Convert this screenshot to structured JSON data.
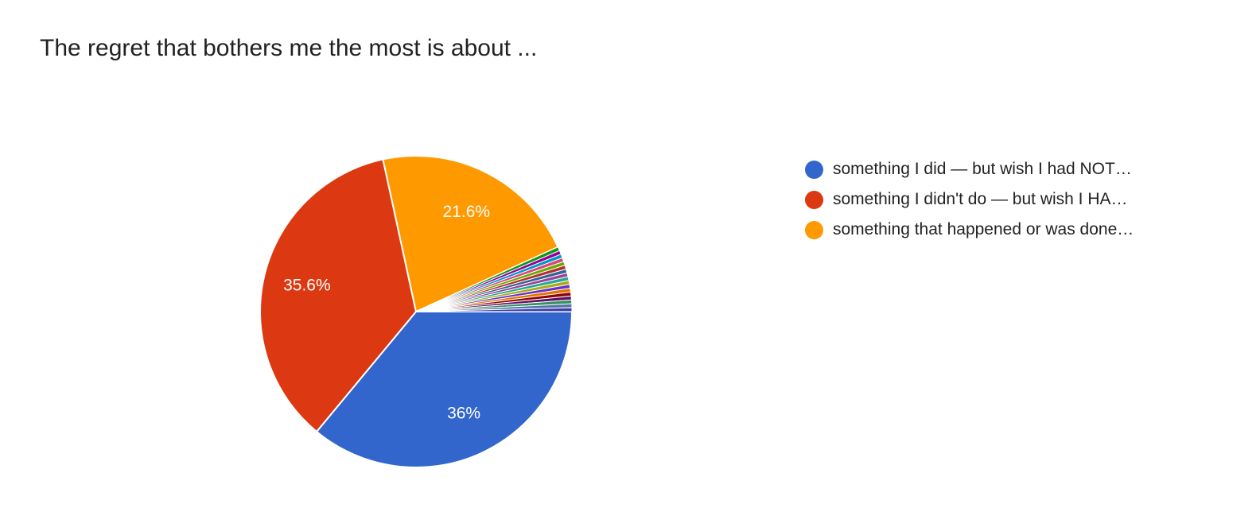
{
  "chart_data": {
    "type": "pie",
    "title": "The regret that bothers me the most is about ...",
    "start_angle_deg": 90,
    "slices": [
      {
        "name": "something I did — but wish I had NOT…",
        "value": 36,
        "label": "36%",
        "color": "#3366cc",
        "in_legend": true
      },
      {
        "name": "something I didn't do — but wish I HA…",
        "value": 35.6,
        "label": "35.6%",
        "color": "#dc3912",
        "in_legend": true
      },
      {
        "name": "something that happened or was done…",
        "value": 21.6,
        "label": "21.6%",
        "color": "#ff9900",
        "in_legend": true
      },
      {
        "value": 0.4,
        "color": "#109618"
      },
      {
        "value": 0.4,
        "color": "#990099"
      },
      {
        "value": 0.4,
        "color": "#0099c6"
      },
      {
        "value": 0.4,
        "color": "#dd4477"
      },
      {
        "value": 0.4,
        "color": "#66aa00"
      },
      {
        "value": 0.4,
        "color": "#b82e2e"
      },
      {
        "value": 0.4,
        "color": "#316395"
      },
      {
        "value": 0.4,
        "color": "#994499"
      },
      {
        "value": 0.4,
        "color": "#22aa99"
      },
      {
        "value": 0.4,
        "color": "#aaaa11"
      },
      {
        "value": 0.4,
        "color": "#6633cc"
      },
      {
        "value": 0.4,
        "color": "#e67300"
      },
      {
        "value": 0.4,
        "color": "#8b0707"
      },
      {
        "value": 0.4,
        "color": "#651067"
      },
      {
        "value": 0.4,
        "color": "#329262"
      },
      {
        "value": 0.4,
        "color": "#5574a6"
      },
      {
        "value": 0.4,
        "color": "#3b3eac"
      }
    ],
    "legend_position": "right"
  }
}
